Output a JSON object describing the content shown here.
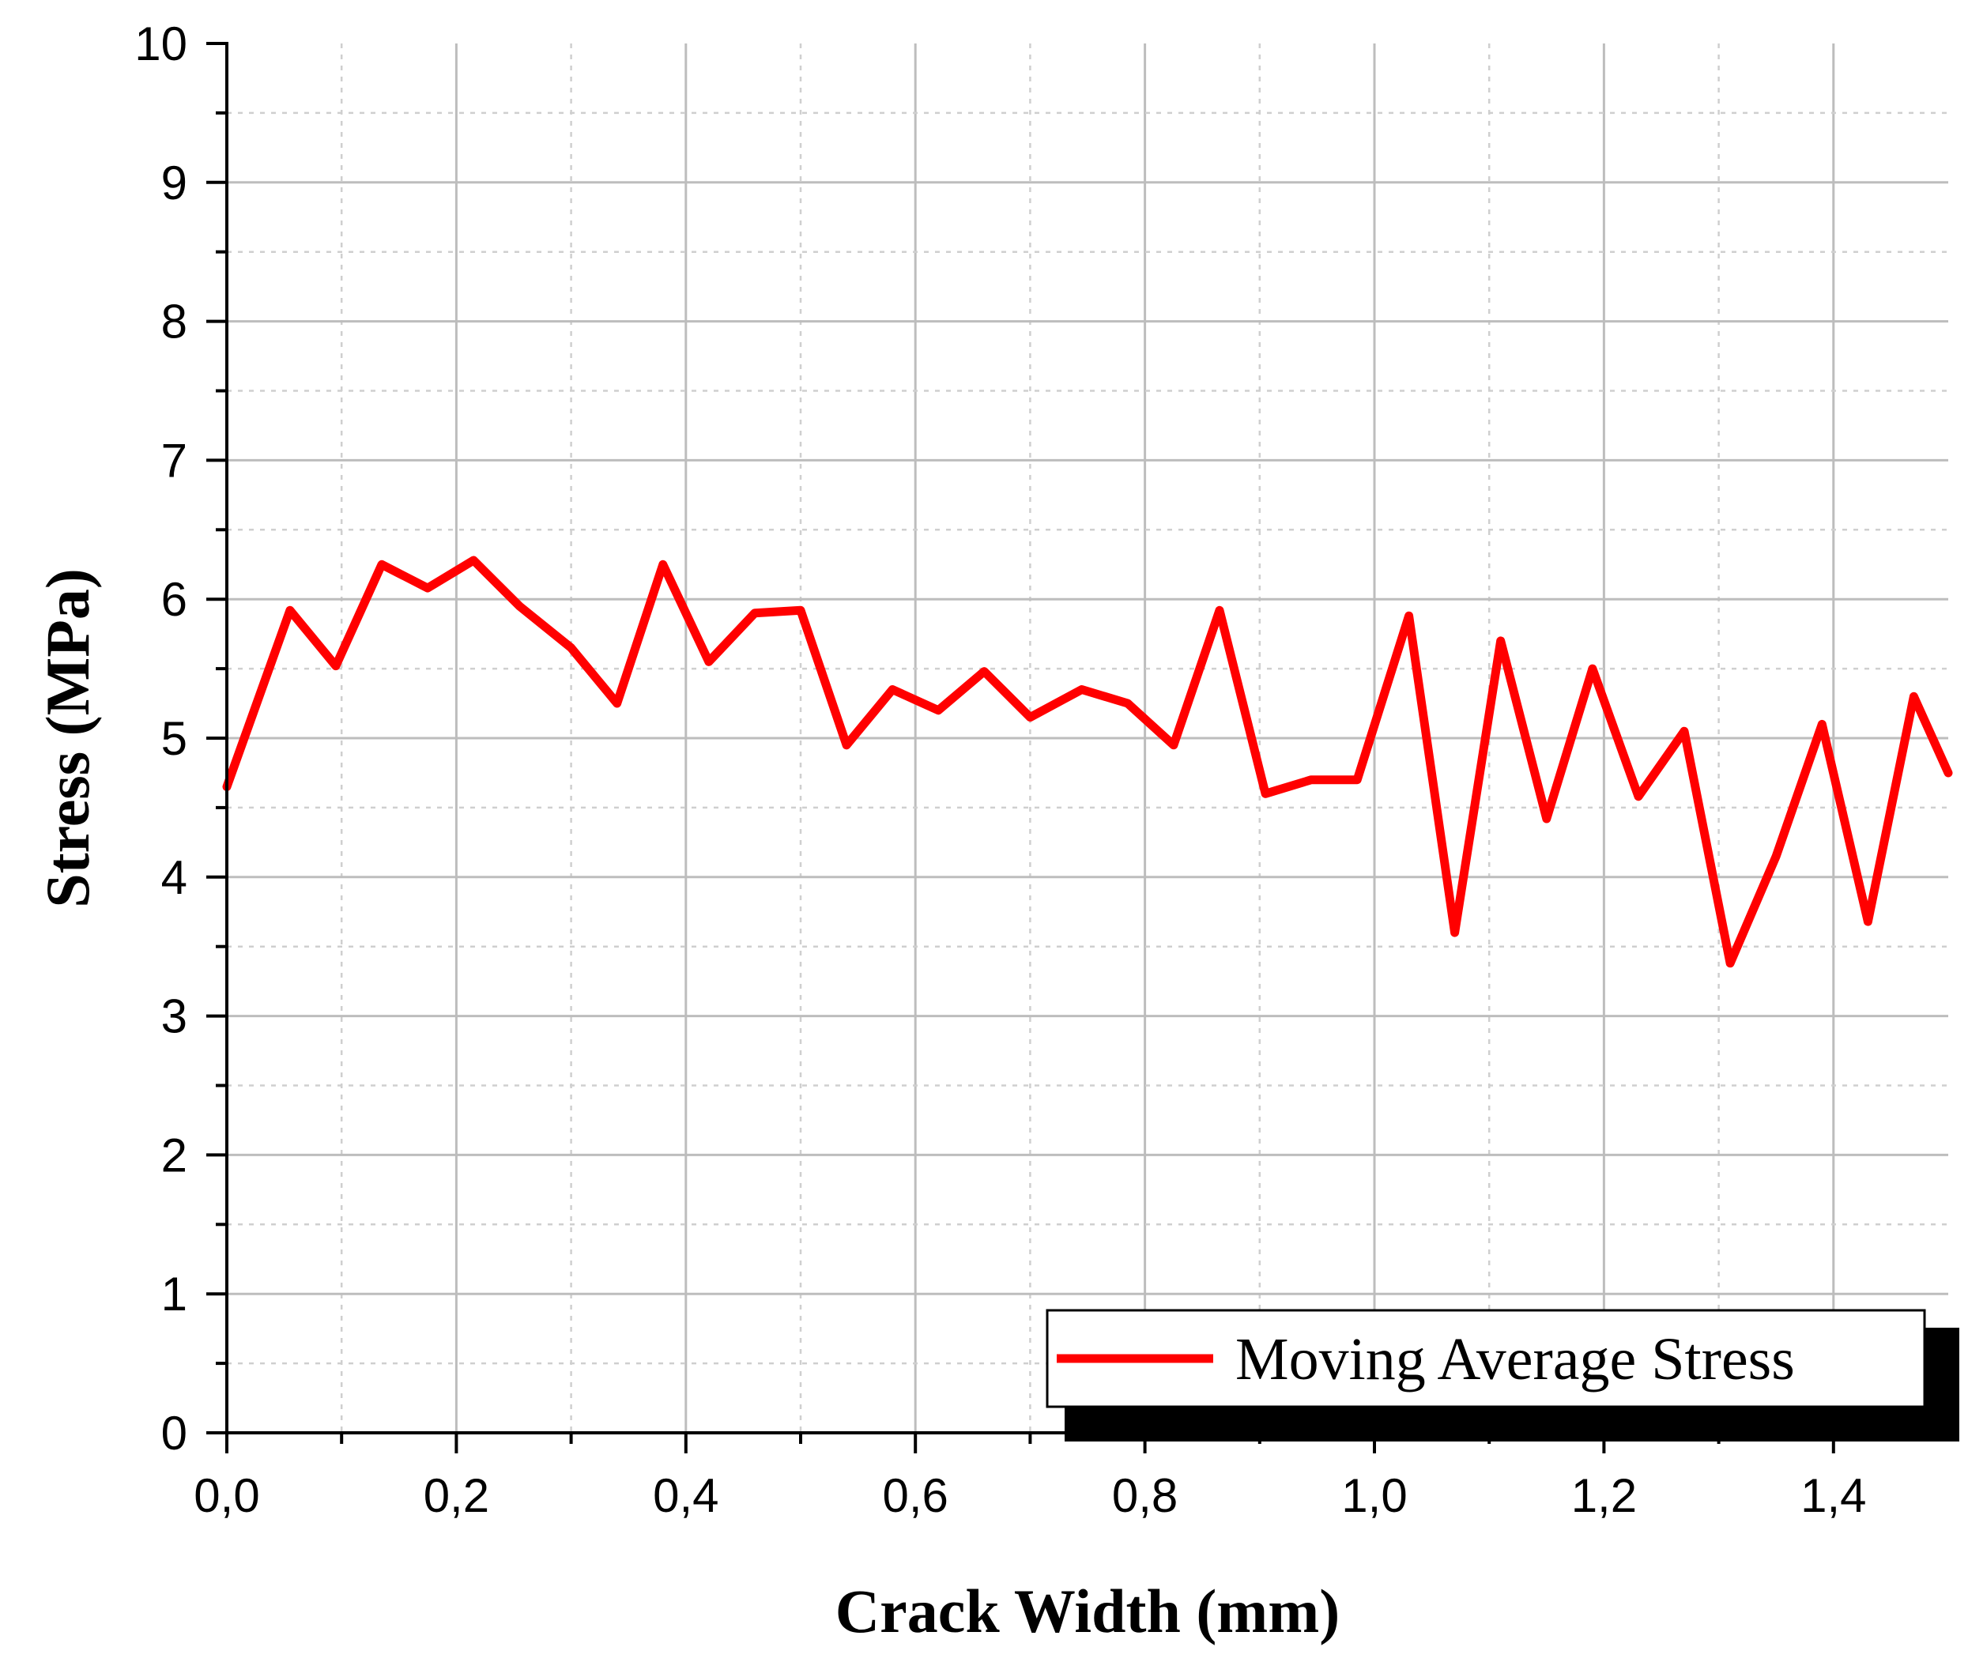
{
  "chart_data": {
    "type": "line",
    "xlabel": "Crack Width (mm)",
    "ylabel": "Stress (MPa)",
    "xlim": [
      0,
      1.5
    ],
    "ylim": [
      0,
      10
    ],
    "x_ticks": [
      "0,0",
      "0,2",
      "0,4",
      "0,6",
      "0,8",
      "1,0",
      "1,2",
      "1,4"
    ],
    "y_ticks": [
      "0",
      "1",
      "2",
      "3",
      "4",
      "5",
      "6",
      "7",
      "8",
      "9",
      "10"
    ],
    "grid": true,
    "legend_position": "bottom-right",
    "series": [
      {
        "name": "Moving Average Stress",
        "color": "#ff0000",
        "x": [
          0.0,
          0.055,
          0.095,
          0.135,
          0.175,
          0.215,
          0.255,
          0.3,
          0.34,
          0.38,
          0.42,
          0.46,
          0.5,
          0.54,
          0.58,
          0.62,
          0.66,
          0.7,
          0.745,
          0.785,
          0.825,
          0.865,
          0.905,
          0.945,
          0.985,
          1.03,
          1.07,
          1.11,
          1.15,
          1.19,
          1.23,
          1.27,
          1.31,
          1.35,
          1.39,
          1.43,
          1.47,
          1.5
        ],
        "y": [
          4.65,
          5.92,
          5.52,
          6.25,
          6.08,
          6.28,
          5.95,
          5.65,
          5.25,
          6.25,
          5.55,
          5.9,
          5.92,
          4.95,
          5.35,
          5.2,
          5.48,
          5.15,
          5.35,
          5.25,
          4.95,
          5.92,
          4.6,
          4.7,
          4.7,
          5.88,
          3.6,
          5.7,
          4.42,
          5.5,
          4.58,
          5.05,
          3.38,
          4.15,
          5.1,
          3.68,
          5.3,
          4.75
        ]
      }
    ]
  }
}
